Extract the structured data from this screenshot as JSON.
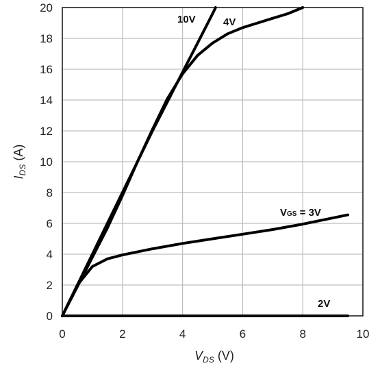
{
  "chart_data": {
    "type": "line",
    "xlabel": {
      "main": "V",
      "sub": "DS",
      "unit": " (V)"
    },
    "ylabel": {
      "main": "I",
      "sub": "DS",
      "unit": " (A)"
    },
    "xlim": [
      0,
      10
    ],
    "ylim": [
      0,
      20
    ],
    "xticks": [
      "0",
      "2",
      "4",
      "6",
      "8",
      "10"
    ],
    "yticks": [
      "0",
      "2",
      "4",
      "6",
      "8",
      "10",
      "12",
      "14",
      "16",
      "18",
      "20"
    ],
    "grid": true,
    "series": [
      {
        "name": "10V",
        "label_parts": {
          "pre": "10V",
          "sub": "",
          "post": ""
        },
        "x": [
          0,
          0.5,
          1,
          1.5,
          2,
          2.5,
          3,
          3.5,
          4,
          4.5,
          5,
          5.1
        ],
        "y": [
          0,
          2.0,
          4.0,
          6.0,
          8.0,
          10.0,
          12.0,
          13.9,
          15.8,
          17.7,
          19.6,
          20
        ]
      },
      {
        "name": "4V",
        "label_parts": {
          "pre": "4V",
          "sub": "",
          "post": ""
        },
        "x": [
          0,
          0.5,
          1,
          1.5,
          2,
          2.5,
          3,
          3.5,
          4,
          4.5,
          5,
          5.5,
          6,
          6.5,
          7,
          7.5,
          8
        ],
        "y": [
          0,
          1.9,
          3.8,
          5.7,
          7.8,
          10.0,
          12.1,
          14.1,
          15.7,
          16.9,
          17.7,
          18.3,
          18.7,
          19.0,
          19.3,
          19.6,
          20.0
        ]
      },
      {
        "name": "VGS = 3V",
        "label_parts": {
          "pre": "V",
          "sub": "GS",
          "post": " = 3V"
        },
        "x": [
          0,
          0.5,
          1,
          1.5,
          2,
          3,
          4,
          5,
          6,
          7,
          8,
          9,
          9.5
        ],
        "y": [
          0,
          2.0,
          3.2,
          3.7,
          3.95,
          4.35,
          4.7,
          5.0,
          5.3,
          5.6,
          5.95,
          6.35,
          6.55
        ]
      },
      {
        "name": "2V",
        "label_parts": {
          "pre": "2V",
          "sub": "",
          "post": ""
        },
        "x": [
          0,
          9.5
        ],
        "y": [
          0,
          0
        ]
      }
    ]
  }
}
